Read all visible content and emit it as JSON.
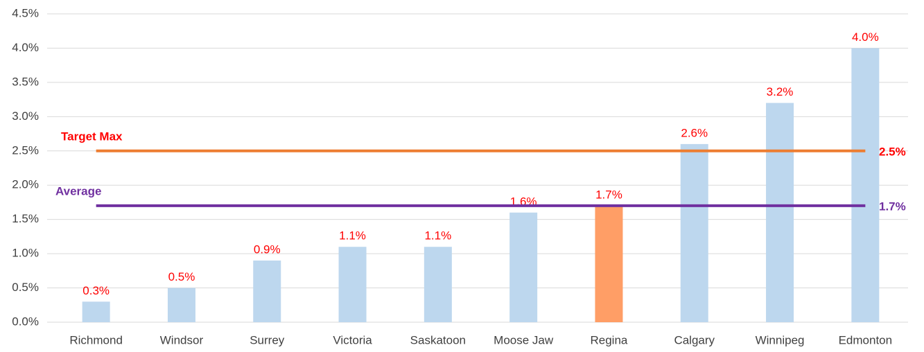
{
  "chart_data": {
    "type": "bar",
    "categories": [
      "Richmond",
      "Windsor",
      "Surrey",
      "Victoria",
      "Saskatoon",
      "Moose Jaw",
      "Regina",
      "Calgary",
      "Winnipeg",
      "Edmonton"
    ],
    "values": [
      0.3,
      0.5,
      0.9,
      1.1,
      1.1,
      1.6,
      1.7,
      2.6,
      3.2,
      4.0
    ],
    "value_labels": [
      "0.3%",
      "0.5%",
      "0.9%",
      "1.1%",
      "1.1%",
      "1.6%",
      "1.7%",
      "2.6%",
      "3.2%",
      "4.0%"
    ],
    "value_label_color": "#ff0000",
    "colors": [
      "#bdd7ee",
      "#bdd7ee",
      "#bdd7ee",
      "#bdd7ee",
      "#bdd7ee",
      "#bdd7ee",
      "#ff9e66",
      "#bdd7ee",
      "#bdd7ee",
      "#bdd7ee"
    ],
    "ylim": [
      0,
      4.5
    ],
    "yticks": [
      {
        "value": 0,
        "label": "0.0%"
      },
      {
        "value": 0.5,
        "label": "0.5%"
      },
      {
        "value": 1,
        "label": "1.0%"
      },
      {
        "value": 1.5,
        "label": "1.5%"
      },
      {
        "value": 2,
        "label": "2.0%"
      },
      {
        "value": 2.5,
        "label": "2.5%"
      },
      {
        "value": 3,
        "label": "3.0%"
      },
      {
        "value": 3.5,
        "label": "3.5%"
      },
      {
        "value": 4,
        "label": "4.0%"
      },
      {
        "value": 4.5,
        "label": "4.5%"
      }
    ],
    "grid": true,
    "reference_lines": [
      {
        "name": "Target Max",
        "value": 2.5,
        "value_label": "2.5%",
        "color": "#ed7d31",
        "label_color": "#ff0000"
      },
      {
        "name": "Average",
        "value": 1.7,
        "value_label": "1.7%",
        "color": "#7030a0",
        "label_color": "#7030a0"
      }
    ]
  }
}
